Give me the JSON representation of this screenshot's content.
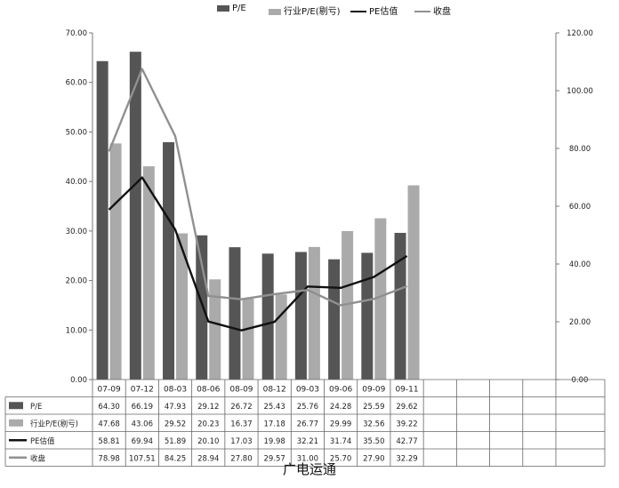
{
  "chart_data": {
    "type": "bar",
    "categories": [
      "07-09",
      "07-12",
      "08-03",
      "08-06",
      "08-09",
      "08-12",
      "09-03",
      "09-06",
      "09-09",
      "09-11"
    ],
    "empty_columns": 4,
    "y_left": {
      "ticks": [
        "0.00",
        "10.00",
        "20.00",
        "30.00",
        "40.00",
        "50.00",
        "60.00",
        "70.00"
      ],
      "lim": [
        0,
        70
      ]
    },
    "y_right": {
      "ticks": [
        "0.00",
        "20.00",
        "40.00",
        "60.00",
        "80.00",
        "100.00",
        "120.00"
      ],
      "lim": [
        0,
        120
      ]
    },
    "series": [
      {
        "name": "P/E",
        "legend_label": "P/E",
        "kind": "bar",
        "axis": "left",
        "color": "#555555",
        "values": [
          64.3,
          66.19,
          47.93,
          29.12,
          26.72,
          25.43,
          25.76,
          24.28,
          25.59,
          29.62
        ],
        "labels": [
          "64.30",
          "66.19",
          "47.93",
          "29.12",
          "26.72",
          "25.43",
          "25.76",
          "24.28",
          "25.59",
          "29.62"
        ]
      },
      {
        "name": "行业P/E(剔亏)",
        "legend_label": "行业P/E(剔亏)",
        "kind": "bar",
        "axis": "left",
        "color": "#aaaaaa",
        "values": [
          47.68,
          43.06,
          29.52,
          20.23,
          16.37,
          17.18,
          26.77,
          29.99,
          32.56,
          39.22
        ],
        "labels": [
          "47.68",
          "43.06",
          "29.52",
          "20.23",
          "16.37",
          "17.18",
          "26.77",
          "29.99",
          "32.56",
          "39.22"
        ]
      },
      {
        "name": "PE估值",
        "legend_label": "PE估值",
        "kind": "line",
        "axis": "right",
        "color": "#111111",
        "values": [
          58.81,
          69.94,
          51.89,
          20.1,
          17.03,
          19.98,
          32.21,
          31.74,
          35.5,
          42.77
        ],
        "labels": [
          "58.81",
          "69.94",
          "51.89",
          "20.10",
          "17.03",
          "19.98",
          "32.21",
          "31.74",
          "35.50",
          "42.77"
        ]
      },
      {
        "name": "收盘",
        "legend_label": "收盘",
        "kind": "line",
        "axis": "right",
        "color": "#909090",
        "values": [
          78.98,
          107.51,
          84.25,
          28.94,
          27.8,
          29.57,
          31.0,
          25.7,
          27.9,
          32.29
        ],
        "labels": [
          "78.98",
          "107.51",
          "84.25",
          "28.94",
          "27.80",
          "29.57",
          "31.00",
          "25.70",
          "27.90",
          "32.29"
        ]
      }
    ],
    "grid": false,
    "legend_position": "top-center",
    "caption": "广电运通"
  }
}
